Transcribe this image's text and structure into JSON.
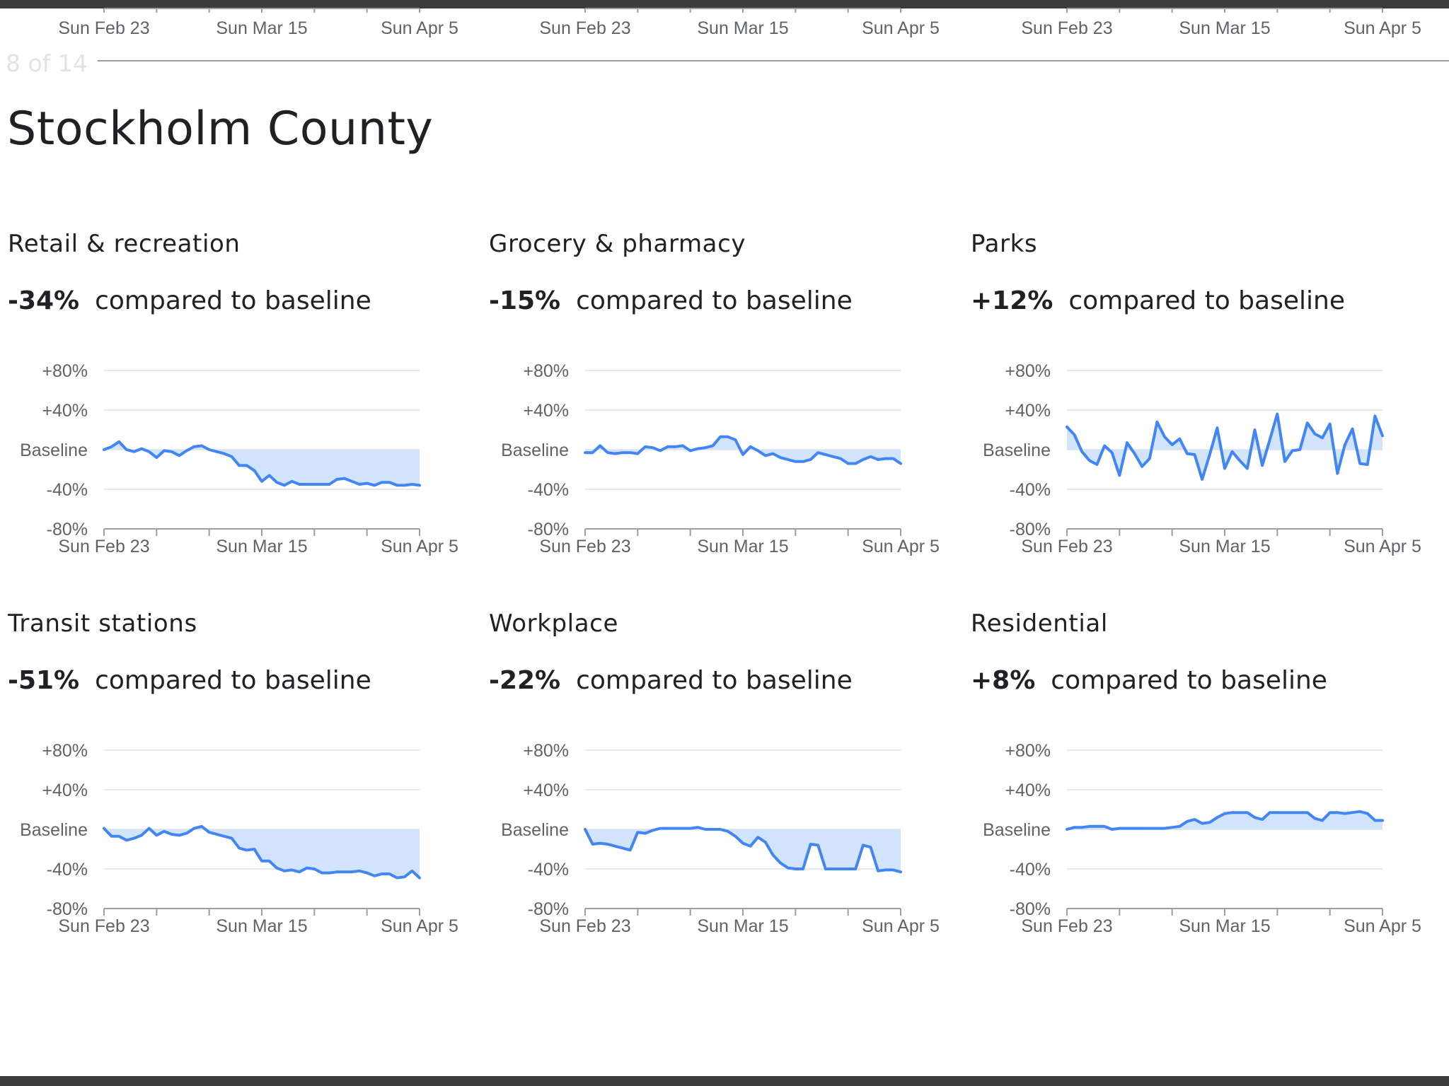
{
  "page": {
    "indicator": "8 of 14",
    "title": "Stockholm County",
    "stat_suffix": "compared to baseline"
  },
  "colors": {
    "line": "#4285f4",
    "fill": "#d2e3fc",
    "grid": "#e0e0e0",
    "axis": "#9e9e9e"
  },
  "top_strip": {
    "x_labels": [
      "Sun Feb 23",
      "Sun Mar 15",
      "Sun Apr 5"
    ]
  },
  "chart_data": [
    {
      "type": "area",
      "title": "Retail & recreation",
      "headline": "-34%",
      "y_ticks": [
        "+80%",
        "+40%",
        "Baseline",
        "-40%",
        "-80%"
      ],
      "ylim": [
        -80,
        80
      ],
      "x_labels": [
        "Sun Feb 23",
        "Sun Mar 15",
        "Sun Apr 5"
      ],
      "values": [
        0,
        3,
        8,
        0,
        -2,
        1,
        -2,
        -8,
        -1,
        -2,
        -6,
        -1,
        3,
        4,
        0,
        -2,
        -4,
        -7,
        -16,
        -16,
        -21,
        -32,
        -26,
        -33,
        -36,
        -32,
        -35,
        -35,
        -35,
        -35,
        -35,
        -30,
        -29,
        -32,
        -35,
        -34,
        -36,
        -33,
        -33,
        -36,
        -36,
        -35,
        -36
      ]
    },
    {
      "type": "area",
      "title": "Grocery & pharmacy",
      "headline": "-15%",
      "y_ticks": [
        "+80%",
        "+40%",
        "Baseline",
        "-40%",
        "-80%"
      ],
      "ylim": [
        -80,
        80
      ],
      "x_labels": [
        "Sun Feb 23",
        "Sun Mar 15",
        "Sun Apr 5"
      ],
      "values": [
        -3,
        -3,
        4,
        -3,
        -4,
        -3,
        -3,
        -4,
        3,
        2,
        -1,
        3,
        3,
        4,
        -1,
        1,
        2,
        4,
        13,
        13,
        10,
        -5,
        3,
        -1,
        -6,
        -4,
        -8,
        -10,
        -12,
        -12,
        -10,
        -3,
        -5,
        -7,
        -9,
        -14,
        -14,
        -10,
        -7,
        -10,
        -9,
        -9,
        -14
      ]
    },
    {
      "type": "area",
      "title": "Parks",
      "headline": "+12%",
      "y_ticks": [
        "+80%",
        "+40%",
        "Baseline",
        "-40%",
        "-80%"
      ],
      "ylim": [
        -80,
        80
      ],
      "x_labels": [
        "Sun Feb 23",
        "Sun Mar 15",
        "Sun Apr 5"
      ],
      "values": [
        23,
        15,
        -2,
        -11,
        -15,
        4,
        -3,
        -26,
        7,
        -4,
        -17,
        -9,
        28,
        13,
        5,
        11,
        -4,
        -5,
        -30,
        -5,
        22,
        -19,
        -2,
        -11,
        -19,
        20,
        -16,
        10,
        36,
        -12,
        -1,
        0,
        27,
        16,
        12,
        26,
        -24,
        5,
        21,
        -14,
        -15,
        34,
        14
      ]
    },
    {
      "type": "area",
      "title": "Transit stations",
      "headline": "-51%",
      "y_ticks": [
        "+80%",
        "+40%",
        "Baseline",
        "-40%",
        "-80%"
      ],
      "ylim": [
        -80,
        80
      ],
      "x_labels": [
        "Sun Feb 23",
        "Sun Mar 15",
        "Sun Apr 5"
      ],
      "values": [
        1,
        -7,
        -7,
        -11,
        -9,
        -6,
        1,
        -6,
        -2,
        -5,
        -6,
        -4,
        1,
        3,
        -3,
        -5,
        -7,
        -9,
        -19,
        -21,
        -20,
        -32,
        -32,
        -39,
        -42,
        -41,
        -43,
        -39,
        -40,
        -44,
        -44,
        -43,
        -43,
        -43,
        -42,
        -44,
        -47,
        -45,
        -45,
        -49,
        -48,
        -42,
        -49
      ]
    },
    {
      "type": "area",
      "title": "Workplace",
      "headline": "-22%",
      "y_ticks": [
        "+80%",
        "+40%",
        "Baseline",
        "-40%",
        "-80%"
      ],
      "ylim": [
        -80,
        80
      ],
      "x_labels": [
        "Sun Feb 23",
        "Sun Mar 15",
        "Sun Apr 5"
      ],
      "values": [
        0,
        -15,
        -14,
        -15,
        -17,
        -19,
        -21,
        -3,
        -4,
        -1,
        1,
        1,
        1,
        1,
        1,
        2,
        0,
        0,
        0,
        -2,
        -7,
        -14,
        -17,
        -8,
        -13,
        -26,
        -34,
        -39,
        -40,
        -40,
        -15,
        -16,
        -40,
        -40,
        -40,
        -40,
        -40,
        -16,
        -18,
        -42,
        -41,
        -41,
        -43
      ]
    },
    {
      "type": "area",
      "title": "Residential",
      "headline": "+8%",
      "y_ticks": [
        "+80%",
        "+40%",
        "Baseline",
        "-40%",
        "-80%"
      ],
      "ylim": [
        -80,
        80
      ],
      "x_labels": [
        "Sun Feb 23",
        "Sun Mar 15",
        "Sun Apr 5"
      ],
      "values": [
        0,
        2,
        2,
        3,
        3,
        3,
        0,
        1,
        1,
        1,
        1,
        1,
        1,
        1,
        2,
        3,
        8,
        10,
        6,
        7,
        12,
        16,
        17,
        17,
        17,
        12,
        10,
        17,
        17,
        17,
        17,
        17,
        17,
        11,
        9,
        17,
        17,
        16,
        17,
        18,
        16,
        9,
        9
      ]
    }
  ]
}
